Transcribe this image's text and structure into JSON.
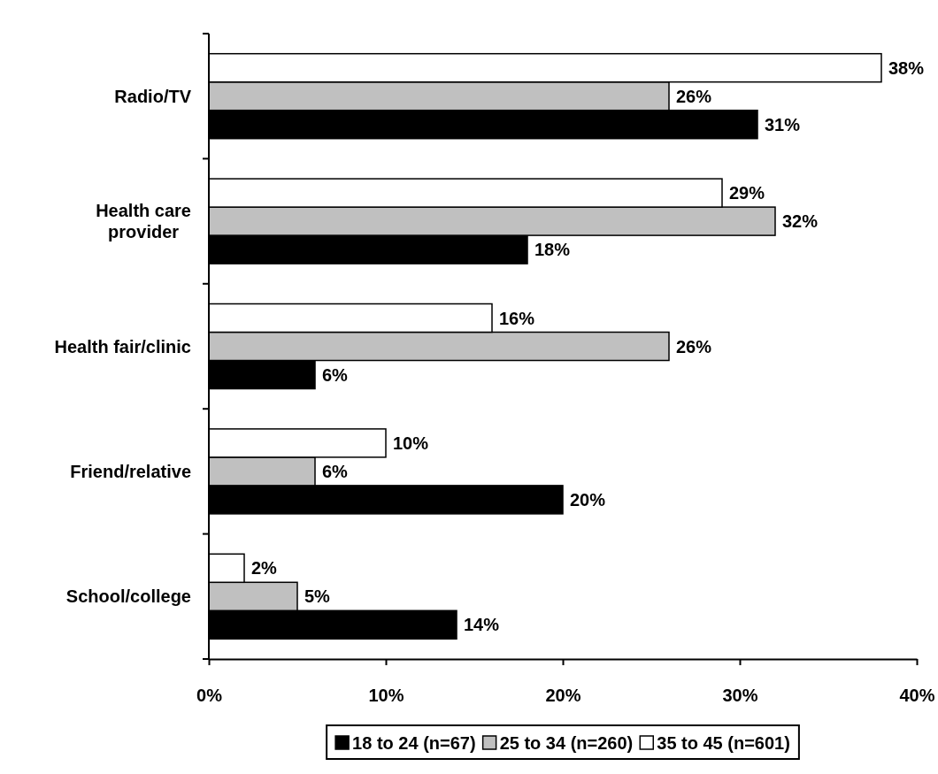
{
  "chart_data": {
    "type": "bar",
    "orientation": "horizontal",
    "categories": [
      "Radio/TV",
      "Health care provider",
      "Health fair/clinic",
      "Friend/relative",
      "School/college"
    ],
    "series": [
      {
        "name": "18 to 24 (n=67)",
        "color": "#000000",
        "values": [
          31,
          18,
          6,
          20,
          14
        ],
        "value_labels": [
          "31%",
          "18%",
          "6%",
          "20%",
          "14%"
        ]
      },
      {
        "name": "25 to 34 (n=260)",
        "color": "#c0c0c0",
        "values": [
          26,
          32,
          26,
          6,
          5
        ],
        "value_labels": [
          "26%",
          "32%",
          "26%",
          "6%",
          "5%"
        ]
      },
      {
        "name": "35 to 45 (n=601)",
        "color": "#ffffff",
        "values": [
          38,
          29,
          16,
          10,
          2
        ],
        "value_labels": [
          "38%",
          "29%",
          "16%",
          "10%",
          "2%"
        ]
      }
    ],
    "xlim": [
      0,
      40
    ],
    "xticks": [
      {
        "value": 0,
        "label": "0%"
      },
      {
        "value": 10,
        "label": "10%"
      },
      {
        "value": 20,
        "label": "20%"
      },
      {
        "value": 30,
        "label": "30%"
      },
      {
        "value": 40,
        "label": "40%"
      }
    ],
    "grid": false,
    "legend": "bottom"
  }
}
